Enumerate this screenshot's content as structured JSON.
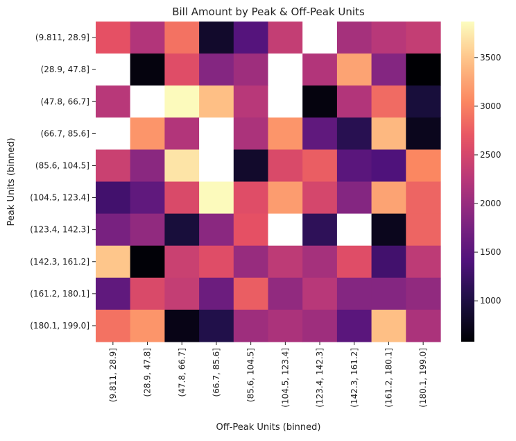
{
  "chart_data": {
    "type": "heatmap",
    "title": "Bill Amount by Peak & Off-Peak Units",
    "xlabel": "Off-Peak Units (binned)",
    "ylabel": "Peak Units (binned)",
    "x_categories": [
      "(9.811, 28.9]",
      "(28.9, 47.8]",
      "(47.8, 66.7]",
      "(66.7, 85.6]",
      "(85.6, 104.5]",
      "(104.5, 123.4]",
      "(123.4, 142.3]",
      "(142.3, 161.2]",
      "(161.2, 180.1]",
      "(180.1, 199.0]"
    ],
    "y_categories": [
      "(9.811, 28.9]",
      "(28.9, 47.8]",
      "(47.8, 66.7]",
      "(66.7, 85.6]",
      "(85.6, 104.5]",
      "(104.5, 123.4]",
      "(123.4, 142.3]",
      "(142.3, 161.2]",
      "(161.2, 180.1]",
      "(180.1, 199.0]"
    ],
    "values": [
      [
        2650,
        2200,
        2900,
        850,
        1450,
        2350,
        null,
        2100,
        2250,
        2350
      ],
      [
        null,
        650,
        2600,
        1850,
        2050,
        null,
        2200,
        3250,
        1850,
        580
      ],
      [
        2250,
        null,
        3850,
        3450,
        2250,
        null,
        650,
        2200,
        2850,
        950
      ],
      [
        null,
        3150,
        2200,
        null,
        2150,
        3150,
        1550,
        1100,
        3400,
        750
      ],
      [
        2400,
        1900,
        3700,
        null,
        850,
        2550,
        2750,
        1500,
        1400,
        3050
      ],
      [
        1300,
        1550,
        2550,
        3850,
        2600,
        3200,
        2500,
        1850,
        3250,
        2800
      ],
      [
        1750,
        1950,
        950,
        1900,
        2650,
        null,
        1150,
        null,
        750,
        2800
      ],
      [
        3500,
        600,
        2400,
        2600,
        2000,
        2300,
        2100,
        2600,
        1300,
        2300
      ],
      [
        1550,
        2550,
        2350,
        1650,
        2750,
        1950,
        2250,
        1850,
        1850,
        1950
      ],
      [
        2900,
        3150,
        700,
        1050,
        2050,
        2150,
        2050,
        1500,
        3450,
        2150
      ]
    ],
    "missing_color": "#ffffff",
    "colormap": "magma",
    "vmin": 580,
    "vmax": 3870,
    "colorbar_ticks": [
      1000,
      1500,
      2000,
      2500,
      3000,
      3500
    ],
    "colorbar_tick_labels": [
      "1000",
      "1500",
      "2000",
      "2500",
      "3000",
      "3500"
    ],
    "grid": false
  }
}
